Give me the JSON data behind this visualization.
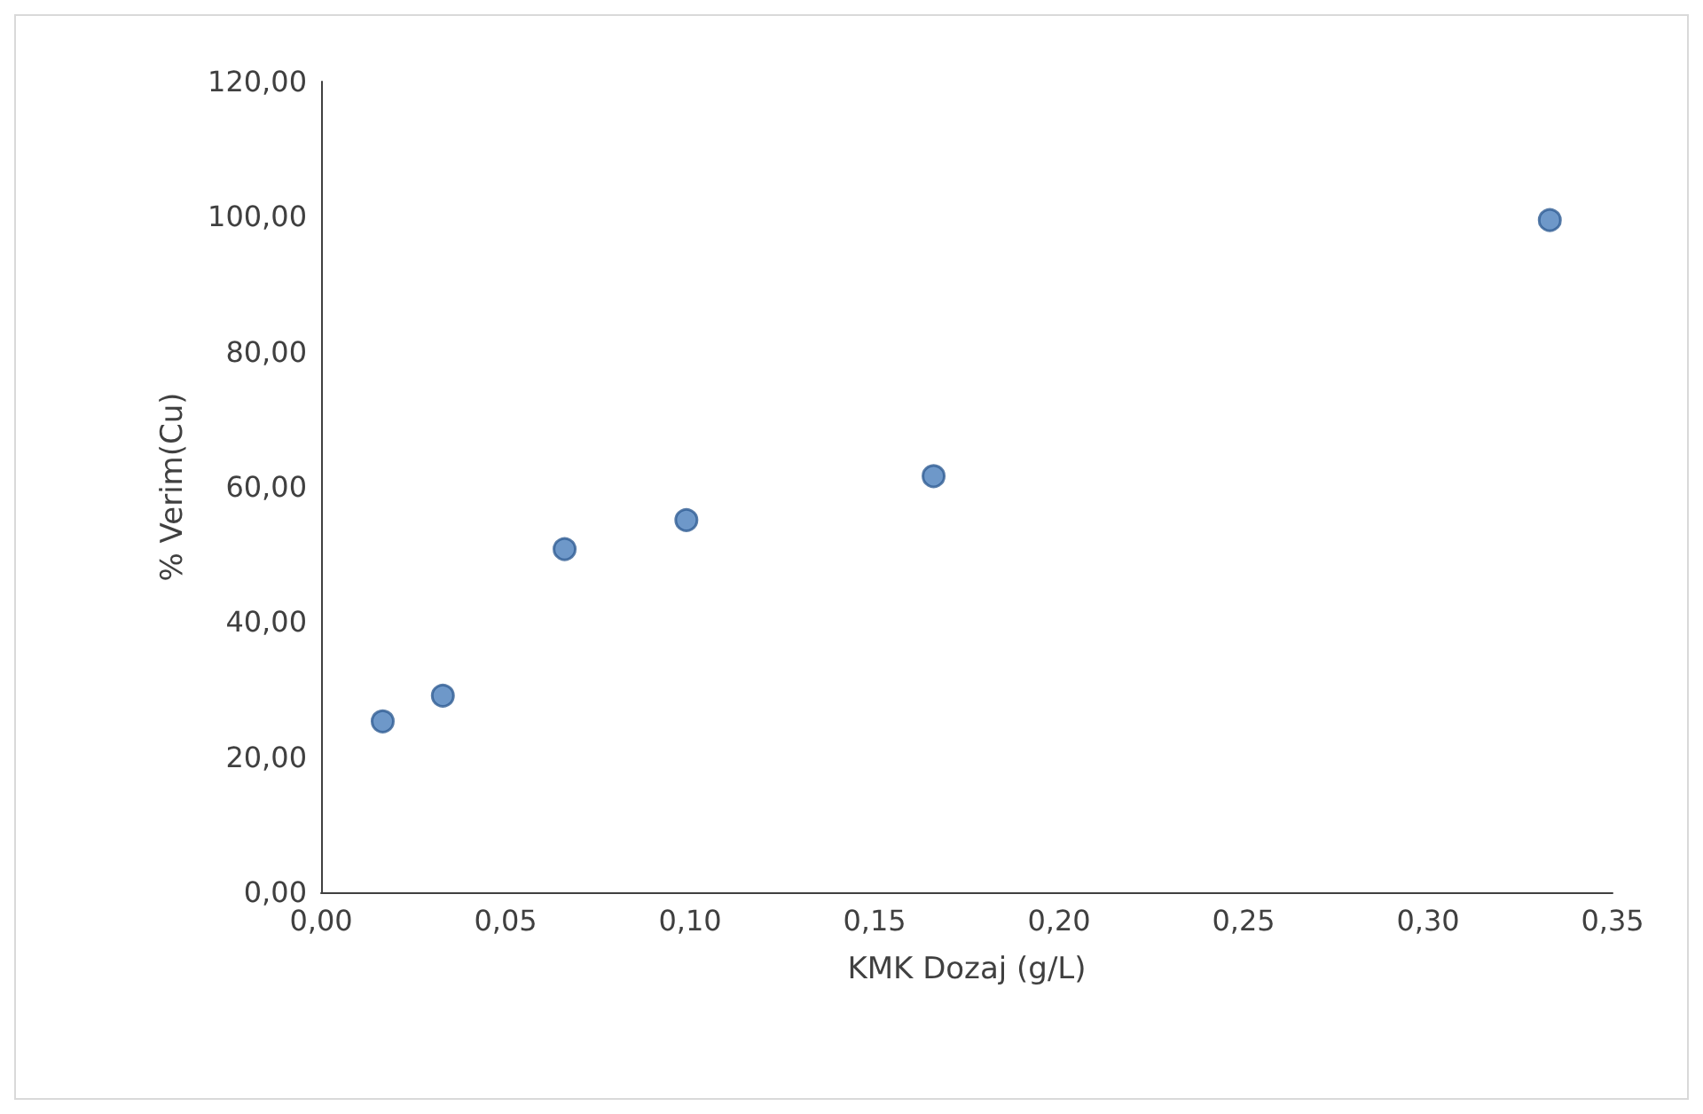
{
  "chart_data": {
    "type": "scatter",
    "xlabel": "KMK Dozaj (g/L)",
    "ylabel": "% Verim(Cu)",
    "x": [
      0.0167,
      0.033,
      0.066,
      0.099,
      0.166,
      0.333
    ],
    "values": [
      25.3,
      29.1,
      50.8,
      55.1,
      61.6,
      99.5
    ],
    "color": "#4a7ebb",
    "marker": "circle",
    "grid": false,
    "xlim": [
      0,
      0.35
    ],
    "ylim": [
      0,
      120
    ],
    "xticks": [
      {
        "value": 0,
        "label": "0,00"
      },
      {
        "value": 0.05,
        "label": "0,05"
      },
      {
        "value": 0.1,
        "label": "0,10"
      },
      {
        "value": 0.15,
        "label": "0,15"
      },
      {
        "value": 0.2,
        "label": "0,20"
      },
      {
        "value": 0.25,
        "label": "0,25"
      },
      {
        "value": 0.3,
        "label": "0,30"
      },
      {
        "value": 0.35,
        "label": "0,35"
      }
    ],
    "yticks": [
      {
        "value": 0,
        "label": "0,00"
      },
      {
        "value": 20,
        "label": "20,00"
      },
      {
        "value": 40,
        "label": "40,00"
      },
      {
        "value": 60,
        "label": "60,00"
      },
      {
        "value": 80,
        "label": "80,00"
      },
      {
        "value": 100,
        "label": "100,00"
      },
      {
        "value": 120,
        "label": "120,00"
      }
    ]
  }
}
